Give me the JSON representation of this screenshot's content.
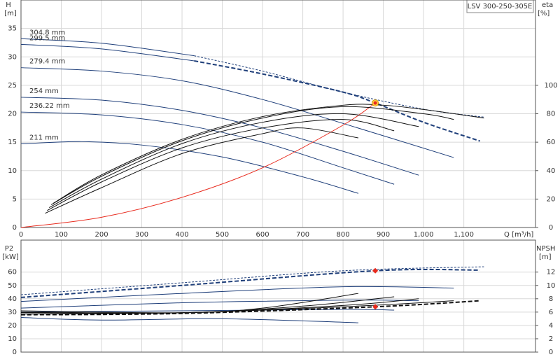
{
  "chart_data": [
    {
      "type": "line",
      "title": "LSV 300-250-305E",
      "ylabel": "H",
      "ylabel_unit": "[m]",
      "y2label": "eta",
      "y2label_unit": "[%]",
      "xlabel": "Q [m³/h]",
      "xlim": [
        0,
        1278
      ],
      "ylim": [
        0,
        40
      ],
      "y2lim": [
        0,
        160
      ],
      "grid": true,
      "xticks": [
        0,
        100,
        200,
        300,
        400,
        500,
        600,
        700,
        800,
        900,
        {
          "value": 1000,
          "label": "1,000"
        },
        {
          "value": 1100,
          "label": "1,100"
        }
      ],
      "yticks": [
        0,
        5,
        10,
        15,
        20,
        25,
        30,
        35
      ],
      "y2ticks": [
        0,
        20,
        40,
        60,
        80,
        100
      ],
      "series": [
        {
          "name": "304.8 mm",
          "color": "#1f3f7a",
          "dashed": false,
          "x": [
            0,
            200,
            430
          ],
          "values": [
            33.2,
            32.4,
            30.2
          ]
        },
        {
          "color": "#1f3f7a",
          "dashed": true,
          "x": [
            430,
            600,
            800,
            1000,
            1150
          ],
          "values": [
            30.2,
            27.5,
            23.8,
            20.8,
            19.4
          ]
        },
        {
          "name": "299.5 mm",
          "color": "#1f3f7a",
          "dashed": false,
          "x": [
            0,
            200,
            430
          ],
          "values": [
            32.2,
            31.4,
            29.3
          ]
        },
        {
          "color": "#1f3f7a",
          "dashed": true,
          "bold": true,
          "x": [
            430,
            600,
            800,
            880,
            1000,
            1140
          ],
          "values": [
            29.3,
            27.0,
            23.8,
            21.9,
            18.5,
            15.2
          ]
        },
        {
          "name": "279.4 mm",
          "color": "#1f3f7a",
          "dashed": false,
          "x": [
            0,
            200,
            400,
            600,
            800,
            1075
          ],
          "values": [
            28.1,
            27.5,
            25.8,
            22.5,
            18.3,
            12.3
          ]
        },
        {
          "name": "254 mm",
          "color": "#1f3f7a",
          "dashed": false,
          "x": [
            0,
            200,
            400,
            600,
            800,
            988
          ],
          "values": [
            22.9,
            22.4,
            20.6,
            17.5,
            13.4,
            9.2
          ]
        },
        {
          "name": "236.22 mm",
          "color": "#1f3f7a",
          "dashed": false,
          "x": [
            0,
            200,
            400,
            600,
            800,
            927
          ],
          "values": [
            20.3,
            19.8,
            18.1,
            15.0,
            10.5,
            7.6
          ]
        },
        {
          "name": "211 mm",
          "color": "#1f3f7a",
          "dashed": false,
          "x": [
            0,
            150,
            300,
            500,
            700,
            838
          ],
          "values": [
            14.7,
            15.1,
            14.5,
            12.4,
            8.9,
            6.0
          ]
        },
        {
          "color": "#e8291c",
          "dashed": false,
          "x": [
            0,
            200,
            400,
            600,
            800,
            880
          ],
          "values": [
            0,
            1.8,
            5.3,
            10.5,
            18.0,
            21.9
          ]
        },
        {
          "color": "#111111",
          "dashed": false,
          "axis": "y2",
          "x": [
            80,
            200,
            400,
            600,
            800,
            900,
            1000,
            1150
          ],
          "values": [
            17,
            37,
            62,
            78,
            86,
            86,
            83,
            77
          ]
        },
        {
          "color": "#111111",
          "dashed": false,
          "axis": "y2",
          "x": [
            75,
            200,
            400,
            600,
            800,
            1000,
            1075
          ],
          "values": [
            16,
            36,
            61,
            77,
            85,
            80,
            76
          ]
        },
        {
          "color": "#111111",
          "dashed": false,
          "axis": "y2",
          "x": [
            70,
            200,
            400,
            600,
            800,
            988
          ],
          "values": [
            14,
            34,
            59,
            74,
            80,
            71
          ]
        },
        {
          "color": "#111111",
          "dashed": false,
          "axis": "y2",
          "x": [
            65,
            200,
            400,
            600,
            800,
            927
          ],
          "values": [
            12,
            32,
            56,
            70,
            76,
            68
          ]
        },
        {
          "color": "#111111",
          "dashed": false,
          "axis": "y2",
          "x": [
            60,
            200,
            400,
            600,
            700,
            838
          ],
          "values": [
            10,
            28,
            52,
            66,
            70,
            63
          ]
        },
        {
          "color": "#e8291c",
          "marker": "ring",
          "x": [
            880
          ],
          "values": [
            21.9
          ]
        }
      ]
    },
    {
      "type": "line",
      "ylabel": "P2",
      "ylabel_unit": "[kW]",
      "y2label": "NPSH",
      "y2label_unit": "[m]",
      "xlim": [
        0,
        1278
      ],
      "ylim": [
        0,
        84
      ],
      "y2lim": [
        0,
        16.8
      ],
      "grid": true,
      "yticks": [
        0,
        10,
        20,
        30,
        40,
        50,
        60
      ],
      "y2ticks": [
        0,
        2,
        4,
        6,
        8,
        10,
        12
      ],
      "series": [
        {
          "color": "#1f3f7a",
          "dashed": true,
          "x": [
            0,
            400,
            800,
            1150
          ],
          "values": [
            43,
            52,
            61,
            64
          ]
        },
        {
          "color": "#1f3f7a",
          "dashed": true,
          "bold": true,
          "x": [
            0,
            400,
            880,
            1140
          ],
          "values": [
            41,
            50,
            61,
            61.5
          ]
        },
        {
          "color": "#1f3f7a",
          "dashed": false,
          "x": [
            0,
            400,
            800,
            1075
          ],
          "values": [
            38,
            44,
            49,
            48
          ]
        },
        {
          "color": "#1f3f7a",
          "dashed": false,
          "x": [
            0,
            400,
            800,
            988
          ],
          "values": [
            33,
            37,
            39,
            38.5
          ]
        },
        {
          "color": "#1f3f7a",
          "dashed": false,
          "x": [
            0,
            400,
            800,
            927
          ],
          "values": [
            30,
            31,
            32,
            31.5
          ]
        },
        {
          "color": "#1f3f7a",
          "dashed": false,
          "x": [
            0,
            200,
            500,
            838
          ],
          "values": [
            26,
            24,
            25,
            22
          ]
        },
        {
          "color": "#111111",
          "dashed": false,
          "axis": "y2",
          "x": [
            0,
            400,
            600,
            838
          ],
          "values": [
            6.2,
            5.9,
            6.6,
            8.8
          ]
        },
        {
          "color": "#111111",
          "dashed": false,
          "axis": "y2",
          "x": [
            0,
            400,
            700,
            927
          ],
          "values": [
            6.0,
            5.9,
            6.9,
            8.3
          ]
        },
        {
          "color": "#111111",
          "dashed": false,
          "axis": "y2",
          "x": [
            0,
            400,
            800,
            988
          ],
          "values": [
            5.9,
            5.9,
            7.0,
            8.0
          ]
        },
        {
          "color": "#111111",
          "dashed": false,
          "axis": "y2",
          "x": [
            0,
            400,
            800,
            1075
          ],
          "values": [
            5.7,
            5.9,
            6.8,
            7.7
          ]
        },
        {
          "color": "#111111",
          "dashed": true,
          "bold": true,
          "axis": "y2",
          "x": [
            0,
            400,
            880,
            1140
          ],
          "values": [
            5.6,
            5.8,
            6.8,
            7.7
          ]
        },
        {
          "color": "#e8291c",
          "marker": "diamond",
          "x": [
            880
          ],
          "values": [
            61
          ]
        },
        {
          "color": "#e8291c",
          "marker": "diamond",
          "axis": "y2",
          "x": [
            880
          ],
          "values": [
            6.8
          ]
        }
      ]
    }
  ]
}
